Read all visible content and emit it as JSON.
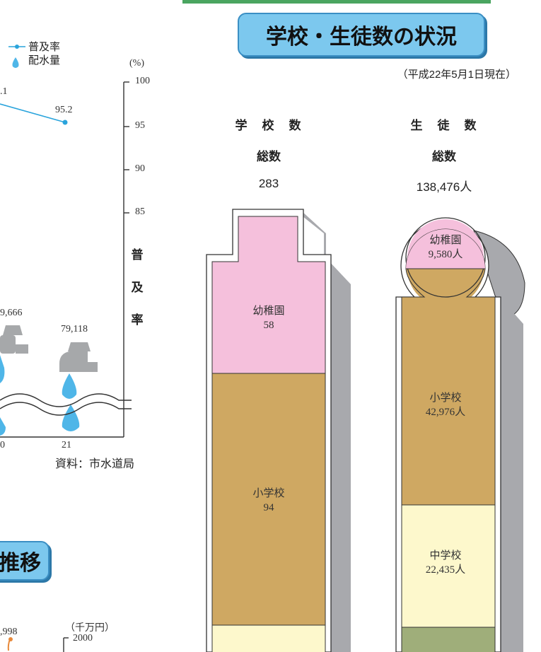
{
  "title": "学校・生徒数の状況",
  "date_note": "（平成22年5月1日現在）",
  "left_chart": {
    "legend": {
      "line_label": "普及率",
      "drop_label": "配水量"
    },
    "unit": "(%)",
    "y_ticks": [
      "100",
      "95",
      "90",
      "85"
    ],
    "axis_title": [
      "普",
      "及",
      "率"
    ],
    "point_labels": {
      "top_partial": ".1",
      "top_value": "95.2",
      "vol_partial": "9,666",
      "vol_value": "79,118"
    },
    "x_labels": [
      "0",
      "21"
    ],
    "source": "資料：市水道局"
  },
  "lower_banner": "推移",
  "lower_chart": {
    "partial_value": ",998",
    "unit": "（千万円）",
    "tick": "2000"
  },
  "chart_data": [
    {
      "type": "bar",
      "title": "学校・生徒数の状況",
      "series": [
        {
          "header": "学　校　数",
          "total_label": "総数",
          "total": "283",
          "segments": [
            {
              "name": "幼稚園",
              "value": 58,
              "label": "58",
              "color": "#f5c0dc"
            },
            {
              "name": "小学校",
              "value": 94,
              "label": "94",
              "color": "#cfa862"
            },
            {
              "name": "中学校",
              "value": null,
              "label": "",
              "color": "#fdf8cc"
            }
          ]
        },
        {
          "header": "生　徒　数",
          "total_label": "総数",
          "total": "138,476人",
          "segments": [
            {
              "name": "幼稚園",
              "value": 9580,
              "label": "9,580人",
              "color": "#f5c0dc"
            },
            {
              "name": "小学校",
              "value": 42976,
              "label": "42,976人",
              "color": "#cfa862"
            },
            {
              "name": "中学校",
              "value": 22435,
              "label": "22,435人",
              "color": "#fdf8cc"
            },
            {
              "name": "",
              "value": null,
              "label": "",
              "color": "#9fae7a"
            }
          ]
        }
      ]
    },
    {
      "type": "line",
      "title": "",
      "ylabel": "普及率",
      "ylim": [
        85,
        100
      ],
      "x": [
        "21"
      ],
      "series": [
        {
          "name": "普及率",
          "values": [
            95.2
          ]
        }
      ],
      "volume": {
        "name": "配水量",
        "values": [
          79118
        ]
      }
    }
  ]
}
